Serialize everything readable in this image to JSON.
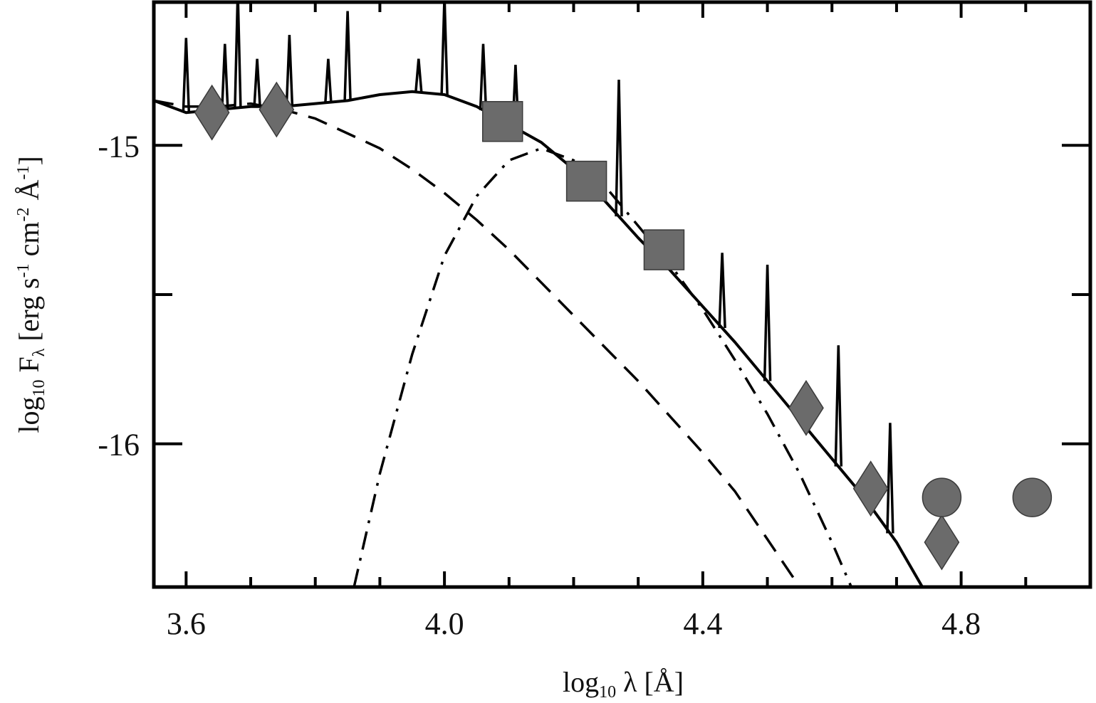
{
  "chart_data": {
    "type": "line",
    "xlabel": "log10 λ [Å]",
    "ylabel": "log10 Fλ [erg s-1 cm-2 Å-1]",
    "xlim": [
      3.55,
      5.0
    ],
    "ylim": [
      -16.48,
      -14.52
    ],
    "x_ticks": [
      {
        "value": 3.6,
        "label": "3.6"
      },
      {
        "value": 4.0,
        "label": "4.0"
      },
      {
        "value": 4.4,
        "label": "4.4"
      },
      {
        "value": 4.8,
        "label": "4.8"
      }
    ],
    "x_minor_ticks": [
      3.7,
      3.8,
      3.9,
      4.1,
      4.2,
      4.3,
      4.5,
      4.6,
      4.7,
      4.9
    ],
    "y_ticks": [
      {
        "value": -15,
        "label": "-15"
      },
      {
        "value": -16,
        "label": "-16"
      }
    ],
    "y_minor_ticks": [
      -14.5,
      -15.5
    ],
    "series": [
      {
        "style": "solid",
        "x": [
          3.55,
          3.6,
          3.65,
          3.7,
          3.75,
          3.8,
          3.85,
          3.9,
          3.95,
          4.0,
          4.05,
          4.1,
          4.15,
          4.2,
          4.25,
          4.3,
          4.35,
          4.4,
          4.45,
          4.5,
          4.55,
          4.6,
          4.65,
          4.7,
          4.74
        ],
        "y": [
          -14.85,
          -14.89,
          -14.88,
          -14.87,
          -14.87,
          -14.86,
          -14.85,
          -14.83,
          -14.82,
          -14.83,
          -14.87,
          -14.93,
          -14.99,
          -15.08,
          -15.19,
          -15.31,
          -15.42,
          -15.54,
          -15.66,
          -15.79,
          -15.92,
          -16.05,
          -16.18,
          -16.33,
          -16.48
        ]
      },
      {
        "style": "dashed",
        "x": [
          3.55,
          3.6,
          3.65,
          3.7,
          3.75,
          3.8,
          3.85,
          3.9,
          3.95,
          4.0,
          4.05,
          4.1,
          4.15,
          4.2,
          4.25,
          4.3,
          4.35,
          4.4,
          4.45,
          4.5,
          4.55
        ],
        "y": [
          -14.85,
          -14.87,
          -14.87,
          -14.86,
          -14.88,
          -14.91,
          -14.96,
          -15.01,
          -15.08,
          -15.16,
          -15.25,
          -15.35,
          -15.46,
          -15.57,
          -15.68,
          -15.79,
          -15.91,
          -16.03,
          -16.16,
          -16.32,
          -16.48
        ]
      },
      {
        "style": "dash-dot",
        "x": [
          3.86,
          3.9,
          3.95,
          4.0,
          4.05,
          4.1,
          4.15,
          4.2,
          4.25,
          4.3,
          4.35,
          4.4,
          4.45,
          4.5,
          4.55,
          4.6,
          4.63
        ],
        "y": [
          -16.48,
          -16.1,
          -15.7,
          -15.37,
          -15.17,
          -15.05,
          -15.01,
          -15.05,
          -15.14,
          -15.27,
          -15.4,
          -15.55,
          -15.72,
          -15.9,
          -16.1,
          -16.33,
          -16.48
        ]
      }
    ],
    "markers": [
      {
        "shape": "diamond",
        "x": 3.64,
        "y": -14.89
      },
      {
        "shape": "diamond",
        "x": 3.74,
        "y": -14.88
      },
      {
        "shape": "square",
        "x": 4.09,
        "y": -14.92
      },
      {
        "shape": "square",
        "x": 4.22,
        "y": -15.12
      },
      {
        "shape": "square",
        "x": 4.34,
        "y": -15.35
      },
      {
        "shape": "diamond",
        "x": 4.56,
        "y": -15.88
      },
      {
        "shape": "diamond",
        "x": 4.66,
        "y": -16.15
      },
      {
        "shape": "diamond",
        "x": 4.77,
        "y": -16.33
      },
      {
        "shape": "circle",
        "x": 4.77,
        "y": -16.18
      },
      {
        "shape": "circle",
        "x": 4.91,
        "y": -16.18
      }
    ],
    "emission_lines": [
      {
        "x": 3.6,
        "y": -14.64
      },
      {
        "x": 3.66,
        "y": -14.66
      },
      {
        "x": 3.68,
        "y": -14.48
      },
      {
        "x": 3.71,
        "y": -14.71
      },
      {
        "x": 3.76,
        "y": -14.63
      },
      {
        "x": 3.82,
        "y": -14.71
      },
      {
        "x": 3.85,
        "y": -14.55
      },
      {
        "x": 3.96,
        "y": -14.71
      },
      {
        "x": 4.0,
        "y": -14.5
      },
      {
        "x": 4.06,
        "y": -14.66
      },
      {
        "x": 4.11,
        "y": -14.73
      },
      {
        "x": 4.27,
        "y": -14.78
      },
      {
        "x": 4.43,
        "y": -15.36
      },
      {
        "x": 4.5,
        "y": -15.4
      },
      {
        "x": 4.61,
        "y": -15.67
      },
      {
        "x": 4.69,
        "y": -15.93
      }
    ]
  }
}
